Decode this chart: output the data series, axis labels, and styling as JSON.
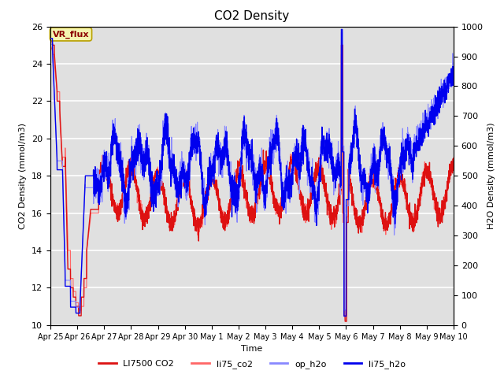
{
  "title": "CO2 Density",
  "xlabel": "Time",
  "ylabel_left": "CO2 Density (mmol/m3)",
  "ylabel_right": "H2O Density (mmol/m3)",
  "ylim_left": [
    10,
    26
  ],
  "ylim_right": [
    0,
    1000
  ],
  "yticks_left": [
    10,
    12,
    14,
    16,
    18,
    20,
    22,
    24,
    26
  ],
  "yticks_right": [
    0,
    100,
    200,
    300,
    400,
    500,
    600,
    700,
    800,
    900,
    1000
  ],
  "xtick_labels": [
    "Apr 25",
    "Apr 26",
    "Apr 27",
    "Apr 28",
    "Apr 29",
    "Apr 30",
    "May 1",
    "May 2",
    "May 3",
    "May 4",
    "May 5",
    "May 6",
    "May 7",
    "May 8",
    "May 9",
    "May 10"
  ],
  "vr_flux_label": "VR_flux",
  "color_LI7500_CO2": "#dd1111",
  "color_li75_co2": "#ff6666",
  "color_op_h2o": "#8888ff",
  "color_li75_h2o": "#0000ee",
  "bg_color": "#e0e0e0",
  "grid_color": "#ffffff"
}
